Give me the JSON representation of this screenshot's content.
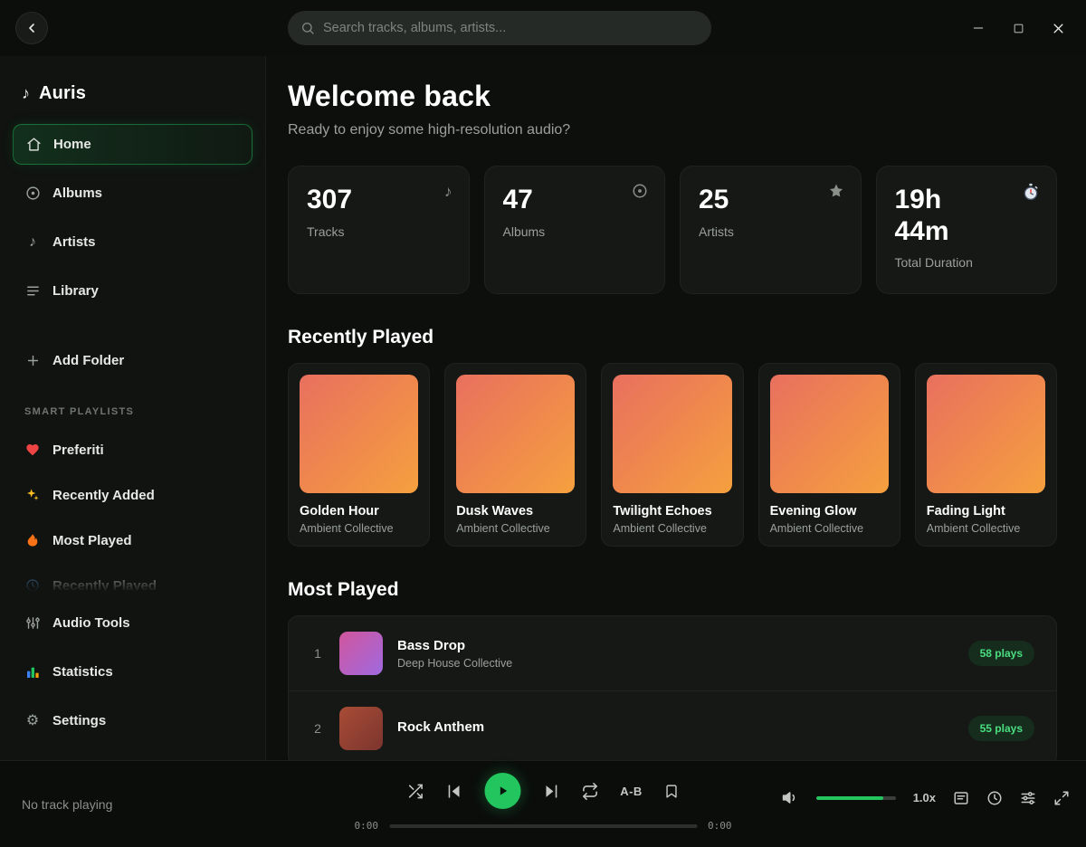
{
  "colors": {
    "accent": "#22c55e",
    "badge_text": "#4ade80",
    "album_art_gradient": [
      "#e8705f",
      "#f5a03f"
    ],
    "track_thumb_gradients": [
      [
        "#d1559c",
        "#9f6ae0"
      ],
      [
        "#a84c36",
        "#7c352e"
      ]
    ],
    "heart": "#ef4444",
    "sparkles": "#fbbf24",
    "flame": "#f97316"
  },
  "topbar": {
    "search_placeholder": "Search tracks, albums, artists...",
    "back_icon": "chevron-left-icon",
    "window_controls": [
      "minimize-icon",
      "maximize-icon",
      "close-icon"
    ]
  },
  "sidebar": {
    "app_name": "Auris",
    "logo_icon": "music-note-icon",
    "nav": [
      {
        "label": "Home",
        "icon": "home-icon",
        "active": true
      },
      {
        "label": "Albums",
        "icon": "disc-icon",
        "active": false
      },
      {
        "label": "Artists",
        "icon": "note-icon",
        "active": false
      },
      {
        "label": "Library",
        "icon": "list-icon",
        "active": false
      }
    ],
    "add_folder_label": "Add Folder",
    "smart_playlists_title": "SMART PLAYLISTS",
    "playlists": [
      {
        "label": "Preferiti",
        "icon": "heart-icon"
      },
      {
        "label": "Recently Added",
        "icon": "sparkles-icon"
      },
      {
        "label": "Most Played",
        "icon": "flame-icon"
      },
      {
        "label": "Recently Played",
        "icon": "clock-icon"
      }
    ],
    "bottom": [
      {
        "label": "Audio Tools",
        "icon": "sliders-icon"
      },
      {
        "label": "Statistics",
        "icon": "bar-chart-icon"
      },
      {
        "label": "Settings",
        "icon": "gear-icon"
      }
    ]
  },
  "main": {
    "title": "Welcome back",
    "subtitle": "Ready to enjoy some high-resolution audio?",
    "stats": [
      {
        "value": "307",
        "label": "Tracks",
        "icon": "note-icon"
      },
      {
        "value": "47",
        "label": "Albums",
        "icon": "disc-icon"
      },
      {
        "value": "25",
        "label": "Artists",
        "icon": "star-icon"
      },
      {
        "value": "19h 44m",
        "label": "Total Duration",
        "icon": "stopwatch-icon"
      }
    ],
    "recently_played": {
      "title": "Recently Played",
      "albums": [
        {
          "title": "Golden Hour",
          "artist": "Ambient Collective"
        },
        {
          "title": "Dusk Waves",
          "artist": "Ambient Collective"
        },
        {
          "title": "Twilight Echoes",
          "artist": "Ambient Collective"
        },
        {
          "title": "Evening Glow",
          "artist": "Ambient Collective"
        },
        {
          "title": "Fading Light",
          "artist": "Ambient Collective"
        }
      ]
    },
    "most_played": {
      "title": "Most Played",
      "tracks": [
        {
          "rank": "1",
          "title": "Bass Drop",
          "artist": "Deep House Collective",
          "plays": "58 plays"
        },
        {
          "rank": "2",
          "title": "Rock Anthem",
          "artist": "",
          "plays": "55 plays"
        }
      ]
    }
  },
  "player": {
    "status": "No track playing",
    "ab_toggle_label": "A-B",
    "playback_speed": "1.0x",
    "elapsed": "0:00",
    "duration": "0:00",
    "volume_percent": 85
  }
}
